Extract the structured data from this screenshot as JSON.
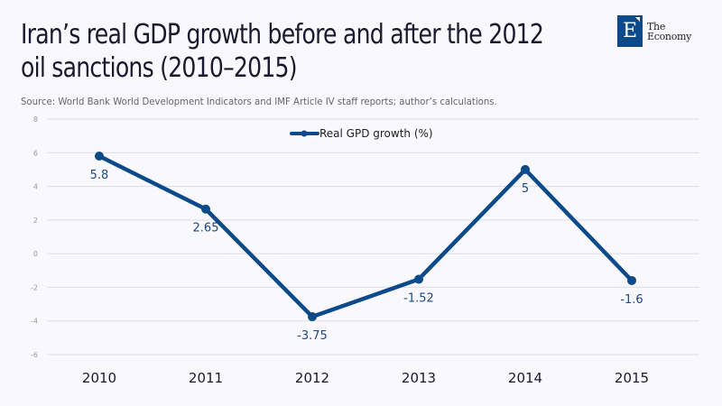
{
  "header": {
    "title": "Iran’s real GDP growth before and after the 2012 oil sanctions (2010–2015)",
    "source": "Source: World Bank World Development Indicators and IMF Article IV staff reports; author’s calculations."
  },
  "logo": {
    "letter": "E",
    "line1": "The",
    "line2": "Economy",
    "color": "#0d4a8a"
  },
  "chart_data": {
    "type": "line",
    "title": "Iran’s real GDP growth before and after the 2012 oil sanctions (2010–2015)",
    "xlabel": "",
    "ylabel": "",
    "categories": [
      "2010",
      "2011",
      "2012",
      "2013",
      "2014",
      "2015"
    ],
    "series": [
      {
        "name": "Real GPD growth (%)",
        "values": [
          5.8,
          2.65,
          -3.75,
          -1.52,
          5,
          -1.6
        ],
        "labels": [
          "5.8",
          "2.65",
          "-3.75",
          "-1.52",
          "5",
          "-1.6"
        ],
        "color": "#0d4a8a"
      }
    ],
    "ylim": [
      -6,
      8
    ],
    "yticks": [
      8,
      6,
      4,
      2,
      0,
      -2,
      -4,
      -6
    ],
    "grid": true,
    "legend": "top-center"
  }
}
